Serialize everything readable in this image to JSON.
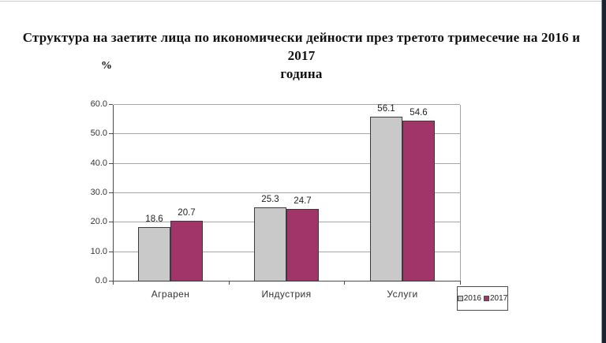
{
  "chart_data": {
    "type": "bar",
    "title": "Структура на заетите лица по икономически дейности през третото тримесечие на 2016 и 2017 година",
    "title_lines": [
      "Структура  на заетите лица по икономически дейности през третото  тримесечие на 2016 и 2017",
      "година"
    ],
    "unit_label": "%",
    "categories": [
      "Аграрен",
      "Индустрия",
      "Услуги"
    ],
    "series": [
      {
        "name": "2016",
        "values": [
          18.6,
          25.3,
          56.1
        ],
        "color": "#C9C9C9"
      },
      {
        "name": "2017",
        "values": [
          20.7,
          24.7,
          54.6
        ],
        "color": "#A13468"
      }
    ],
    "value_labels": [
      [
        "18.6",
        "25.3",
        "56.1"
      ],
      [
        "20.7",
        "24.7",
        "54.6"
      ]
    ],
    "ylim": [
      0,
      60
    ],
    "ytick_step": 10,
    "yticks": [
      "0.0",
      "10.0",
      "20.0",
      "30.0",
      "40.0",
      "50.0",
      "60.0"
    ],
    "grid": true,
    "legend_position": "bottom-right"
  }
}
